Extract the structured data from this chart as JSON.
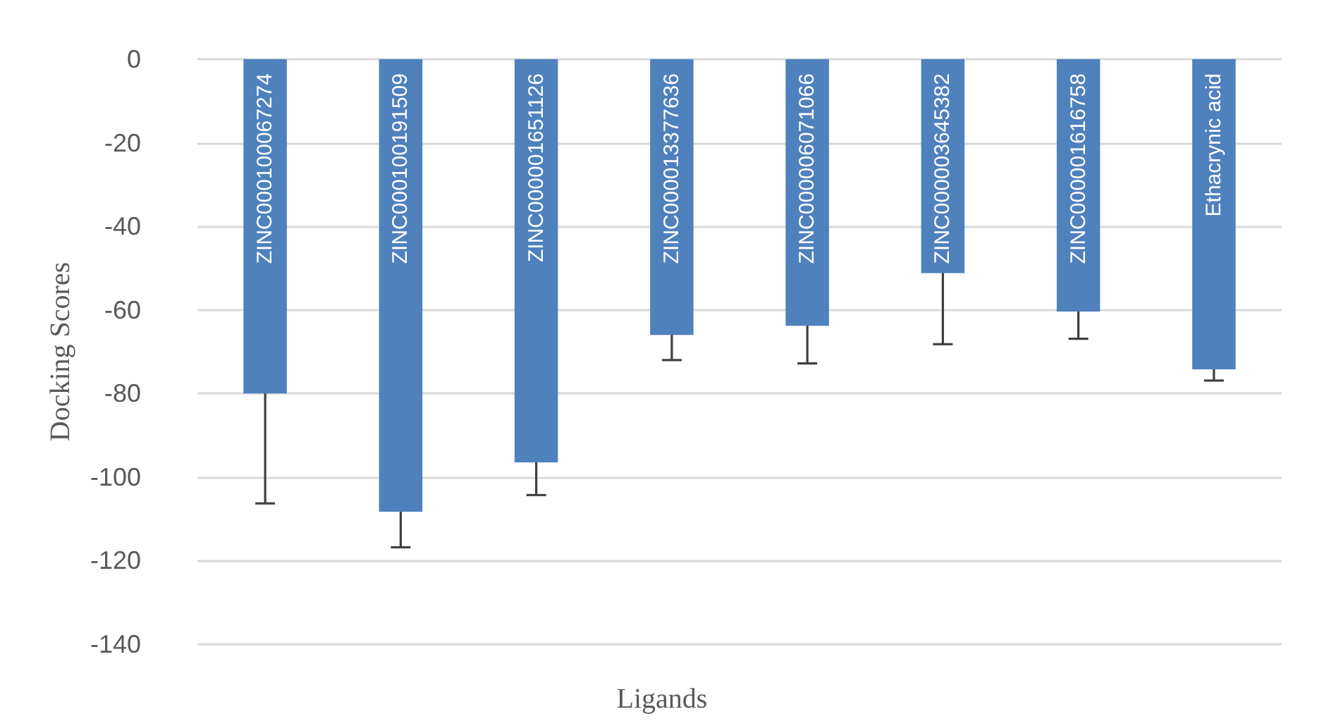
{
  "chart_data": {
    "type": "bar",
    "xlabel": "Ligands",
    "ylabel": "Docking Scores",
    "categories": [
      "ZINC000100067274",
      "ZINC000100191509",
      "ZINC000001651126",
      "ZINC000013377636",
      "ZINC000006071066",
      "ZINC000003645382",
      "ZINC000001616758",
      "Ethacrynic acid"
    ],
    "values": [
      -80,
      -108.3,
      -96.5,
      -66,
      -63.8,
      -51.2,
      -60.4,
      -74.2
    ],
    "errors": [
      26.3,
      8.5,
      7.8,
      6,
      9,
      17,
      6.5,
      2.7
    ],
    "color": "#4f81bd",
    "ylim": [
      -140,
      0
    ],
    "yticks": [
      -140,
      -120,
      -100,
      -80,
      -60,
      -40,
      -20,
      0
    ],
    "grid": "y"
  }
}
